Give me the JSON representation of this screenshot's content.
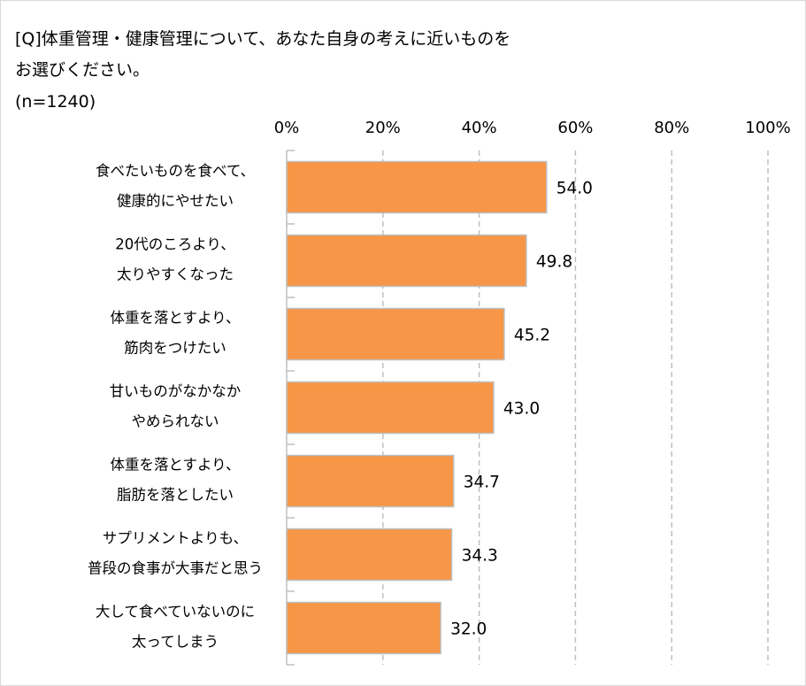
{
  "chart_data": {
    "type": "bar",
    "orientation": "horizontal",
    "title_lines": [
      "[Q]体重管理・健康管理について、あなた自身の考えに近いものを",
      "お選びください。"
    ],
    "subtitle": "(n=1240)",
    "xlim": [
      0,
      100
    ],
    "x_ticks": [
      "0%",
      "20%",
      "40%",
      "60%",
      "80%",
      "100%"
    ],
    "x_tick_values": [
      0,
      20,
      40,
      60,
      80,
      100
    ],
    "grid": "vertical dashed",
    "categories": [
      [
        "食べたいものを食べて、",
        "健康的にやせたい"
      ],
      [
        "20代のころより、",
        "太りやすくなった"
      ],
      [
        "体重を落とすより、",
        "筋肉をつけたい"
      ],
      [
        "甘いものがなかなか",
        "やめられない"
      ],
      [
        "体重を落とすより、",
        "脂肪を落としたい"
      ],
      [
        "サプリメントよりも、",
        "普段の食事が大事だと思う"
      ],
      [
        "大して食べていないのに",
        "太ってしまう"
      ]
    ],
    "values": [
      54.0,
      49.8,
      45.2,
      43.0,
      34.7,
      34.3,
      32.0
    ],
    "value_labels": [
      "54.0",
      "49.8",
      "45.2",
      "43.0",
      "34.7",
      "34.3",
      "32.0"
    ],
    "colors": {
      "bar": "#F79646",
      "bar_border": "#BFBFBF",
      "grid": "#BFBFBF",
      "frame": "#D9D9D9"
    }
  }
}
